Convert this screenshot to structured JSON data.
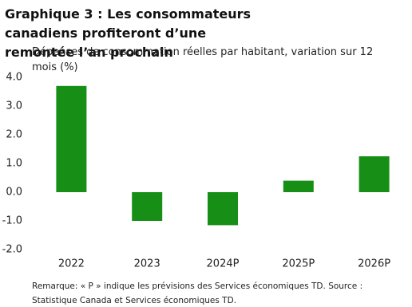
{
  "chart_data": {
    "type": "bar",
    "title": "Graphique 3 : Les consommateurs canadiens profiteront d’une remontée l’an prochain",
    "subtitle": "Dépenses de consommation réelles par habitant, variation sur 12 mois (%)",
    "note": "Remarque: « P » indique les prévisions des Services économiques TD. Source : Statistique Canada et Services économiques TD.",
    "categories": [
      "2022",
      "2023",
      "2024P",
      "2025P",
      "2026P"
    ],
    "values": [
      3.7,
      -1.0,
      -1.15,
      0.4,
      1.25
    ],
    "color": "#178f17",
    "ylim": [
      -2,
      4
    ],
    "yticks": [
      {
        "value": -2,
        "label": "-2.0"
      },
      {
        "value": -1,
        "label": "-1.0"
      },
      {
        "value": 0,
        "label": "0.0"
      },
      {
        "value": 1,
        "label": "1.0"
      },
      {
        "value": 2,
        "label": "2.0"
      },
      {
        "value": 3,
        "label": "3.0"
      },
      {
        "value": 4,
        "label": "4.0"
      }
    ],
    "grid": false
  }
}
